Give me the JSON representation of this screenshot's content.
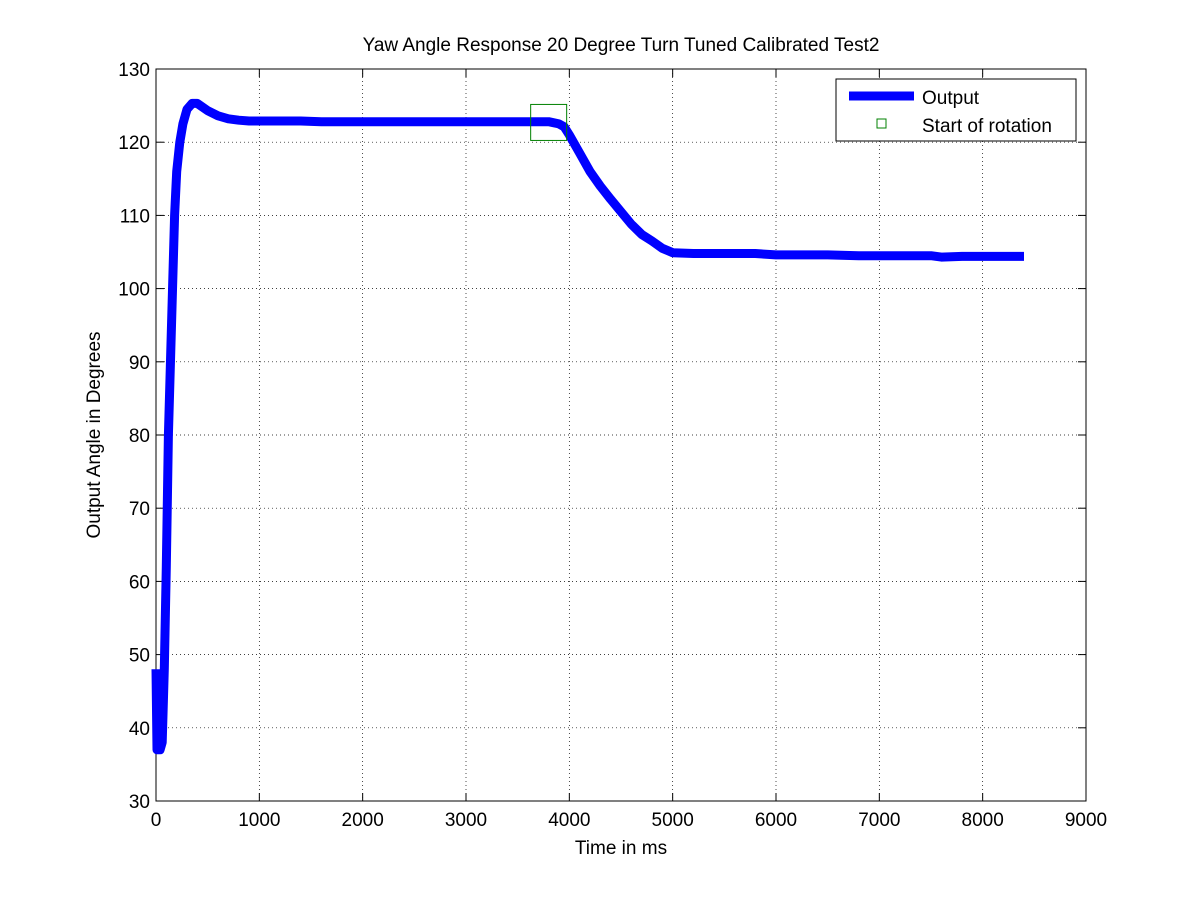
{
  "chart_data": {
    "type": "line",
    "title": "Yaw Angle Response 20 Degree Turn Tuned Calibrated Test2",
    "xlabel": "Time in ms",
    "ylabel": "Output Angle in Degrees",
    "xlim": [
      0,
      9000
    ],
    "ylim": [
      30,
      130
    ],
    "xticks": [
      0,
      1000,
      2000,
      3000,
      4000,
      5000,
      6000,
      7000,
      8000,
      9000
    ],
    "yticks": [
      30,
      40,
      50,
      60,
      70,
      80,
      90,
      100,
      110,
      120,
      130
    ],
    "grid": true,
    "legend_position": "top-right",
    "series": [
      {
        "name": "Output",
        "color": "#0000ff",
        "style": "thick-line",
        "x": [
          0,
          10,
          20,
          30,
          40,
          60,
          80,
          100,
          120,
          150,
          180,
          200,
          230,
          260,
          300,
          350,
          400,
          450,
          500,
          600,
          700,
          800,
          900,
          1000,
          1200,
          1400,
          1600,
          1800,
          2000,
          2200,
          2500,
          2800,
          3000,
          3200,
          3400,
          3600,
          3700,
          3800,
          3900,
          3950,
          4000,
          4100,
          4200,
          4300,
          4400,
          4500,
          4600,
          4700,
          4800,
          4900,
          5000,
          5200,
          5500,
          5800,
          6000,
          6200,
          6500,
          6800,
          7000,
          7200,
          7500,
          7600,
          7800,
          8000,
          8200,
          8400
        ],
        "y": [
          48,
          37,
          38,
          37,
          37,
          38,
          48,
          62,
          80,
          95,
          110,
          116,
          120,
          122.5,
          124.5,
          125.3,
          125.3,
          124.8,
          124.3,
          123.6,
          123.2,
          123.0,
          122.9,
          122.9,
          122.9,
          122.9,
          122.8,
          122.8,
          122.8,
          122.8,
          122.8,
          122.8,
          122.8,
          122.8,
          122.8,
          122.8,
          122.8,
          122.8,
          122.5,
          122.1,
          121.0,
          118.5,
          116.0,
          114.0,
          112.2,
          110.5,
          108.8,
          107.4,
          106.5,
          105.5,
          104.9,
          104.8,
          104.8,
          104.8,
          104.6,
          104.6,
          104.6,
          104.5,
          104.5,
          104.5,
          104.5,
          104.3,
          104.4,
          104.4,
          104.4,
          104.4
        ]
      },
      {
        "name": "Start of rotation",
        "color": "#008000",
        "style": "square-marker",
        "x": [
          3800
        ],
        "y": [
          122.7
        ]
      }
    ]
  }
}
